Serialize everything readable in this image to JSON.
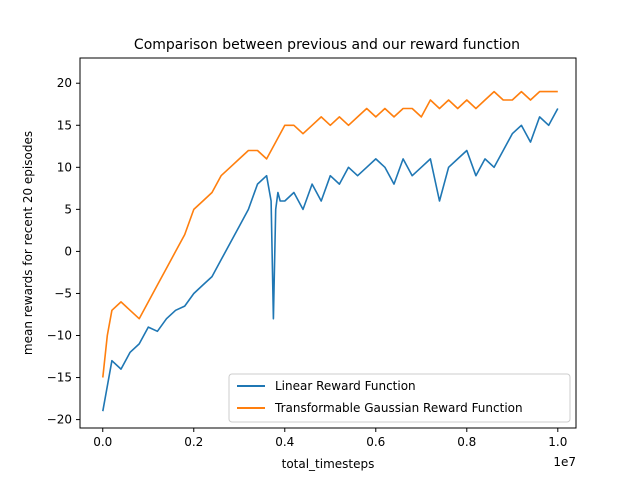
{
  "chart_data": {
    "type": "line",
    "title": "Comparison between previous and our reward function",
    "xlabel": "total_timesteps",
    "ylabel": "mean rewards for recent 20 episodes",
    "x_offset_label": "1e7",
    "xlim": [
      -0.05,
      1.04
    ],
    "ylim": [
      -21,
      23
    ],
    "x_ticks": [
      0.0,
      0.2,
      0.4,
      0.6,
      0.8,
      1.0
    ],
    "x_tick_labels": [
      "0.0",
      "0.2",
      "0.4",
      "0.6",
      "0.8",
      "1.0"
    ],
    "y_ticks": [
      -20,
      -15,
      -10,
      -5,
      0,
      5,
      10,
      15,
      20
    ],
    "y_tick_labels": [
      "−20",
      "−15",
      "−10",
      "−5",
      "0",
      "5",
      "10",
      "15",
      "20"
    ],
    "grid": false,
    "legend_position": "lower-right",
    "series": [
      {
        "name": "Linear Reward Function",
        "color": "#1f77b4",
        "x": [
          0.0,
          0.02,
          0.04,
          0.06,
          0.08,
          0.1,
          0.12,
          0.14,
          0.16,
          0.18,
          0.2,
          0.22,
          0.24,
          0.26,
          0.28,
          0.3,
          0.32,
          0.34,
          0.36,
          0.37,
          0.375,
          0.38,
          0.385,
          0.39,
          0.4,
          0.42,
          0.44,
          0.46,
          0.48,
          0.5,
          0.52,
          0.54,
          0.56,
          0.58,
          0.6,
          0.62,
          0.64,
          0.66,
          0.68,
          0.7,
          0.72,
          0.74,
          0.76,
          0.78,
          0.8,
          0.82,
          0.84,
          0.86,
          0.88,
          0.9,
          0.92,
          0.94,
          0.96,
          0.98,
          1.0
        ],
        "y": [
          -19,
          -13,
          -14,
          -12,
          -11,
          -9,
          -9.5,
          -8,
          -7,
          -6.5,
          -5,
          -4,
          -3,
          -1,
          1,
          3,
          5,
          8,
          9,
          6,
          -8,
          5,
          7,
          6,
          6,
          7,
          5,
          8,
          6,
          9,
          8,
          10,
          9,
          10,
          11,
          10,
          8,
          11,
          9,
          10,
          11,
          6,
          10,
          11,
          12,
          9,
          11,
          10,
          12,
          14,
          15,
          13,
          16,
          15,
          17
        ]
      },
      {
        "name": "Transformable Gaussian Reward Function",
        "color": "#ff7f0e",
        "x": [
          0.0,
          0.01,
          0.02,
          0.04,
          0.06,
          0.08,
          0.1,
          0.12,
          0.14,
          0.16,
          0.18,
          0.2,
          0.22,
          0.24,
          0.26,
          0.28,
          0.3,
          0.32,
          0.34,
          0.36,
          0.38,
          0.4,
          0.42,
          0.44,
          0.46,
          0.48,
          0.5,
          0.52,
          0.54,
          0.56,
          0.58,
          0.6,
          0.62,
          0.64,
          0.66,
          0.68,
          0.7,
          0.72,
          0.74,
          0.76,
          0.78,
          0.8,
          0.82,
          0.84,
          0.86,
          0.88,
          0.9,
          0.92,
          0.94,
          0.96,
          0.98,
          1.0
        ],
        "y": [
          -15,
          -10,
          -7,
          -6,
          -7,
          -8,
          -6,
          -4,
          -2,
          0,
          2,
          5,
          6,
          7,
          9,
          10,
          11,
          12,
          12,
          11,
          13,
          15,
          15,
          14,
          15,
          16,
          15,
          16,
          15,
          16,
          17,
          16,
          17,
          16,
          17,
          17,
          16,
          18,
          17,
          18,
          17,
          18,
          17,
          18,
          19,
          18,
          18,
          19,
          18,
          19,
          19,
          19
        ]
      }
    ]
  }
}
